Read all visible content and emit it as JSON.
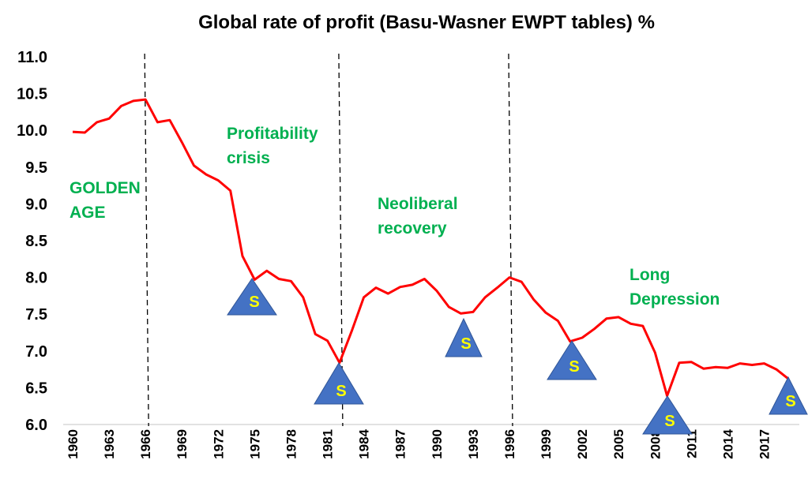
{
  "chart_data": {
    "type": "line",
    "title": "Global rate of profit (Basu-Wasner EWPT tables) %",
    "xlabel": "",
    "ylabel": "",
    "ylim": [
      6.0,
      11.0
    ],
    "xlim": [
      1960,
      2019
    ],
    "grid": false,
    "line_color": "#ff0000",
    "annotation_color": "#00b050",
    "marker_color": "#4472c4",
    "marker_text_color": "#ffff00",
    "y_ticks": [
      "6.0",
      "6.5",
      "7.0",
      "7.5",
      "8.0",
      "8.5",
      "9.0",
      "9.5",
      "10.0",
      "10.5",
      "11.0"
    ],
    "x_ticks": [
      "1960",
      "1963",
      "1966",
      "1969",
      "1972",
      "1975",
      "1978",
      "1981",
      "1984",
      "1987",
      "1990",
      "1993",
      "1996",
      "1999",
      "2002",
      "2005",
      "2008",
      "2011",
      "2014",
      "2017"
    ],
    "series": [
      {
        "name": "Global rate of profit",
        "x": [
          1960,
          1961,
          1962,
          1963,
          1964,
          1965,
          1966,
          1967,
          1968,
          1969,
          1970,
          1971,
          1972,
          1973,
          1974,
          1975,
          1976,
          1977,
          1978,
          1979,
          1980,
          1981,
          1982,
          1983,
          1984,
          1985,
          1986,
          1987,
          1988,
          1989,
          1990,
          1991,
          1992,
          1993,
          1994,
          1995,
          1996,
          1997,
          1998,
          1999,
          2000,
          2001,
          2002,
          2003,
          2004,
          2005,
          2006,
          2007,
          2008,
          2009,
          2010,
          2011,
          2012,
          2013,
          2014,
          2015,
          2016,
          2017,
          2018,
          2019
        ],
        "values": [
          9.98,
          9.97,
          10.11,
          10.16,
          10.33,
          10.4,
          10.42,
          10.11,
          10.14,
          9.84,
          9.52,
          9.4,
          9.32,
          9.18,
          8.29,
          7.97,
          8.09,
          7.98,
          7.95,
          7.73,
          7.23,
          7.14,
          6.84,
          7.27,
          7.73,
          7.86,
          7.78,
          7.87,
          7.9,
          7.98,
          7.82,
          7.6,
          7.51,
          7.53,
          7.73,
          7.86,
          8.0,
          7.94,
          7.7,
          7.52,
          7.41,
          7.13,
          7.18,
          7.3,
          7.44,
          7.46,
          7.37,
          7.34,
          6.98,
          6.39,
          6.84,
          6.85,
          6.76,
          6.78,
          6.77,
          6.83,
          6.81,
          6.83,
          6.75,
          6.62
        ]
      }
    ],
    "period_dividers": [
      1966,
      1982,
      1996
    ],
    "annotations": [
      {
        "lines": [
          "GOLDEN",
          "AGE"
        ]
      },
      {
        "lines": [
          "Profitability",
          "crisis"
        ]
      },
      {
        "lines": [
          "Neoliberal",
          "recovery"
        ]
      },
      {
        "lines": [
          "Long",
          "Depression"
        ]
      }
    ],
    "slump_markers": {
      "label": "S",
      "years": [
        1975,
        1982,
        1992,
        2001,
        2009,
        2019
      ]
    }
  }
}
